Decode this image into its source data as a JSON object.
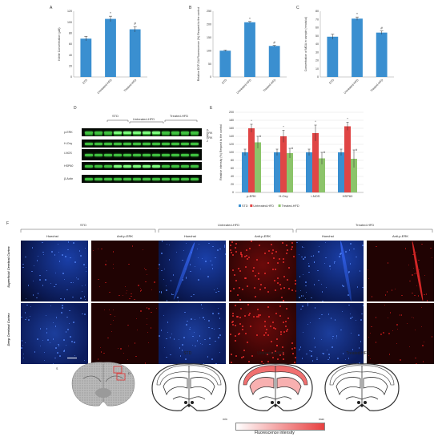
{
  "panel_letters": {
    "A": "A",
    "B": "B",
    "C": "C",
    "D": "D",
    "E": "E",
    "F": "F",
    "G": "G",
    "H": "H"
  },
  "chart_data": [
    {
      "type": "bar",
      "panel": "A",
      "categories": [
        "STD",
        "Untreated-HFD",
        "Treated-HFD"
      ],
      "values": [
        70,
        106,
        87
      ],
      "errors": [
        4,
        5,
        5
      ],
      "sig": [
        "",
        "*",
        "#"
      ],
      "ylabel": "Nitrite Concentration (µM)",
      "ylim": [
        0,
        120
      ],
      "yticks": [
        0,
        20,
        40,
        60,
        80,
        100,
        120
      ],
      "color": "#3a8fd0"
    },
    {
      "type": "bar",
      "panel": "B",
      "categories": [
        "STD",
        "Untreated-HFD",
        "Treated-HFD"
      ],
      "values": [
        100,
        208,
        118
      ],
      "errors": [
        2,
        3,
        2
      ],
      "sig": [
        "",
        "*",
        "#"
      ],
      "ylabel": "Relative DCF-DA Fluorescence (%) Respect to the control",
      "ylim": [
        0,
        250
      ],
      "yticks": [
        0,
        50,
        100,
        150,
        200,
        250
      ],
      "color": "#3a8fd0"
    },
    {
      "type": "bar",
      "panel": "C",
      "categories": [
        "STD",
        "Untreated-HFD",
        "Treated-HFD"
      ],
      "values": [
        49,
        71,
        54
      ],
      "errors": [
        3,
        2,
        2
      ],
      "sig": [
        "",
        "*",
        "#"
      ],
      "ylabel": "Concentration of MDA in sample (nmols/ul)",
      "ylim": [
        0,
        80
      ],
      "yticks": [
        0,
        10,
        20,
        30,
        40,
        50,
        60,
        70,
        80
      ],
      "color": "#3a8fd0"
    },
    {
      "type": "bar",
      "panel": "E",
      "categories": [
        "p-ERK",
        "H-Oxy",
        "i-NOS",
        "HSP60"
      ],
      "series": [
        {
          "name": "STD",
          "values": [
            100,
            100,
            100,
            100
          ],
          "errors": [
            8,
            8,
            8,
            8
          ],
          "color": "#3a8fd0"
        },
        {
          "name": "Untreated-HFD",
          "values": [
            160,
            140,
            148,
            165
          ],
          "errors": [
            10,
            15,
            20,
            10
          ],
          "color": "#e04545"
        },
        {
          "name": "Treated-HFD",
          "values": [
            125,
            98,
            85,
            84
          ],
          "errors": [
            15,
            12,
            15,
            22
          ],
          "color": "#8cc46a"
        }
      ],
      "sig": [
        [
          "",
          "*",
          "#"
        ],
        [
          "",
          "*",
          "#"
        ],
        [
          "",
          "*",
          "#"
        ],
        [
          "",
          "*",
          "#"
        ]
      ],
      "ylabel": "Relative intensity (%) Respect to the control",
      "ylim": [
        0,
        200
      ],
      "yticks": [
        0,
        20,
        40,
        60,
        80,
        100,
        120,
        140,
        160,
        180,
        200
      ],
      "legend_position": "bottom"
    }
  ],
  "western_blot": {
    "groups": [
      "STD",
      "Untreated-HFD",
      "Treated-HFD"
    ],
    "rows": [
      "p-ERK",
      "H-Oxy",
      "i-NOS",
      "HSP60",
      "β-Actin"
    ],
    "arrows": [
      "p-ERK 1",
      "p-ERK 2"
    ]
  },
  "microscopy": {
    "groups": [
      "STD",
      "Untreated-HFD",
      "Treated-HFD"
    ],
    "channels": [
      "Hoechst",
      "Anti-p-ERK"
    ],
    "rows": [
      "Superficial Cerebral Cortex",
      "Deep Cerebral Cortex"
    ]
  },
  "brain_map": {
    "section_labels": [
      "S",
      "D"
    ],
    "titles": [
      "STD",
      "Untreated-HFD",
      "Treated-HFD"
    ],
    "scale_min": "min",
    "scale_max": "max",
    "scale_label": "Fluorescence intensity"
  }
}
